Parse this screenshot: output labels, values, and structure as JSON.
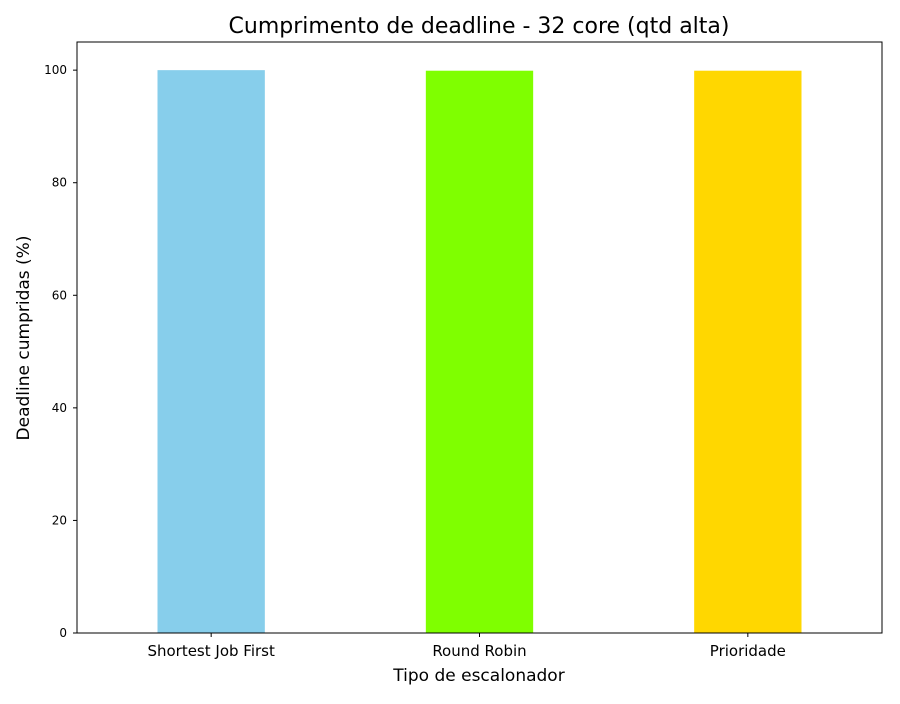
{
  "chart_data": {
    "type": "bar",
    "title": "Cumprimento de deadline - 32 core (qtd alta)",
    "xlabel": "Tipo de escalonador",
    "ylabel": "Deadline cumpridas (%)",
    "categories": [
      "Shortest Job First",
      "Round Robin",
      "Prioridade"
    ],
    "values": [
      100,
      99.9,
      99.9
    ],
    "colors": [
      "#87ceeb",
      "#7fff00",
      "#ffd700"
    ],
    "ylim": [
      0,
      105
    ],
    "yticks": [
      0,
      20,
      40,
      60,
      80,
      100
    ],
    "grid": false,
    "legend": "none"
  }
}
